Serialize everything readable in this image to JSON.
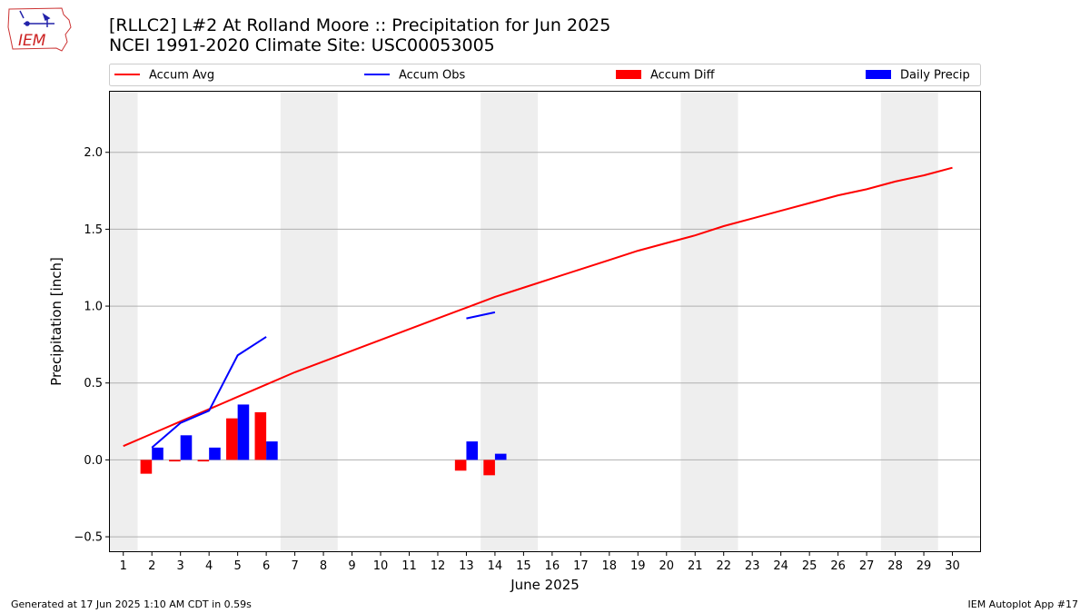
{
  "title_line1": "[RLLC2] L#2 At Rolland Moore :: Precipitation for Jun 2025",
  "title_line2": "NCEI 1991-2020 Climate Site: USC00053005",
  "logo_text": "IEM",
  "footer_left": "Generated at 17 Jun 2025 1:10 AM CDT in 0.59s",
  "footer_right": "IEM Autoplot App #17",
  "colors": {
    "avg": "#ff0000",
    "obs": "#0000ff",
    "diff": "#ff0000",
    "daily": "#0000ff",
    "weekend": "#eeeeee",
    "grid": "#b0b0b0"
  },
  "chart_data": {
    "type": "bar",
    "xlabel": "June 2025",
    "ylabel": "Precipitation [inch]",
    "xlim": [
      0.5,
      31.0
    ],
    "ylim": [
      -0.6,
      2.4
    ],
    "yticks": [
      -0.5,
      0.0,
      0.5,
      1.0,
      1.5,
      2.0
    ],
    "ytick_labels": [
      "−0.5",
      "0.0",
      "0.5",
      "1.0",
      "1.5",
      "2.0"
    ],
    "xticks": [
      1,
      2,
      3,
      4,
      5,
      6,
      7,
      8,
      9,
      10,
      11,
      12,
      13,
      14,
      15,
      16,
      17,
      18,
      19,
      20,
      21,
      22,
      23,
      24,
      25,
      26,
      27,
      28,
      29,
      30
    ],
    "grid": "horizontal",
    "legend": {
      "placement": "top",
      "entries": [
        {
          "label": "Accum Avg",
          "kind": "line",
          "color": "#ff0000"
        },
        {
          "label": "Accum Obs",
          "kind": "line",
          "color": "#0000ff"
        },
        {
          "label": "Accum Diff",
          "kind": "patch",
          "color": "#ff0000"
        },
        {
          "label": "Daily Precip",
          "kind": "patch",
          "color": "#0000ff"
        }
      ]
    },
    "weekends": [
      [
        0.5,
        1.5
      ],
      [
        6.5,
        8.5
      ],
      [
        13.5,
        15.5
      ],
      [
        20.5,
        22.5
      ],
      [
        27.5,
        29.5
      ]
    ],
    "series": [
      {
        "name": "Accum Avg",
        "type": "line",
        "x": [
          1,
          2,
          3,
          4,
          5,
          6,
          7,
          8,
          9,
          10,
          11,
          12,
          13,
          14,
          15,
          16,
          17,
          18,
          19,
          20,
          21,
          22,
          23,
          24,
          25,
          26,
          27,
          28,
          29,
          30
        ],
        "values": [
          0.09,
          0.17,
          0.25,
          0.33,
          0.41,
          0.49,
          0.57,
          0.64,
          0.71,
          0.78,
          0.85,
          0.92,
          0.99,
          1.06,
          1.12,
          1.18,
          1.24,
          1.3,
          1.36,
          1.41,
          1.46,
          1.52,
          1.57,
          1.62,
          1.67,
          1.72,
          1.76,
          1.81,
          1.85,
          1.9
        ]
      },
      {
        "name": "Accum Obs",
        "type": "line",
        "segments": [
          {
            "x": [
              2,
              3,
              4,
              5,
              6
            ],
            "values": [
              0.08,
              0.24,
              0.32,
              0.68,
              0.8
            ]
          },
          {
            "x": [
              13,
              14
            ],
            "values": [
              0.92,
              0.96
            ]
          }
        ]
      },
      {
        "name": "Accum Diff",
        "type": "bar",
        "x": [
          2,
          3,
          4,
          5,
          6,
          13,
          14
        ],
        "values": [
          -0.09,
          -0.01,
          -0.01,
          0.27,
          0.31,
          -0.07,
          -0.1
        ]
      },
      {
        "name": "Daily Precip",
        "type": "bar",
        "x": [
          2,
          3,
          4,
          5,
          6,
          13,
          14
        ],
        "values": [
          0.08,
          0.16,
          0.08,
          0.36,
          0.12,
          0.12,
          0.04
        ]
      }
    ]
  }
}
